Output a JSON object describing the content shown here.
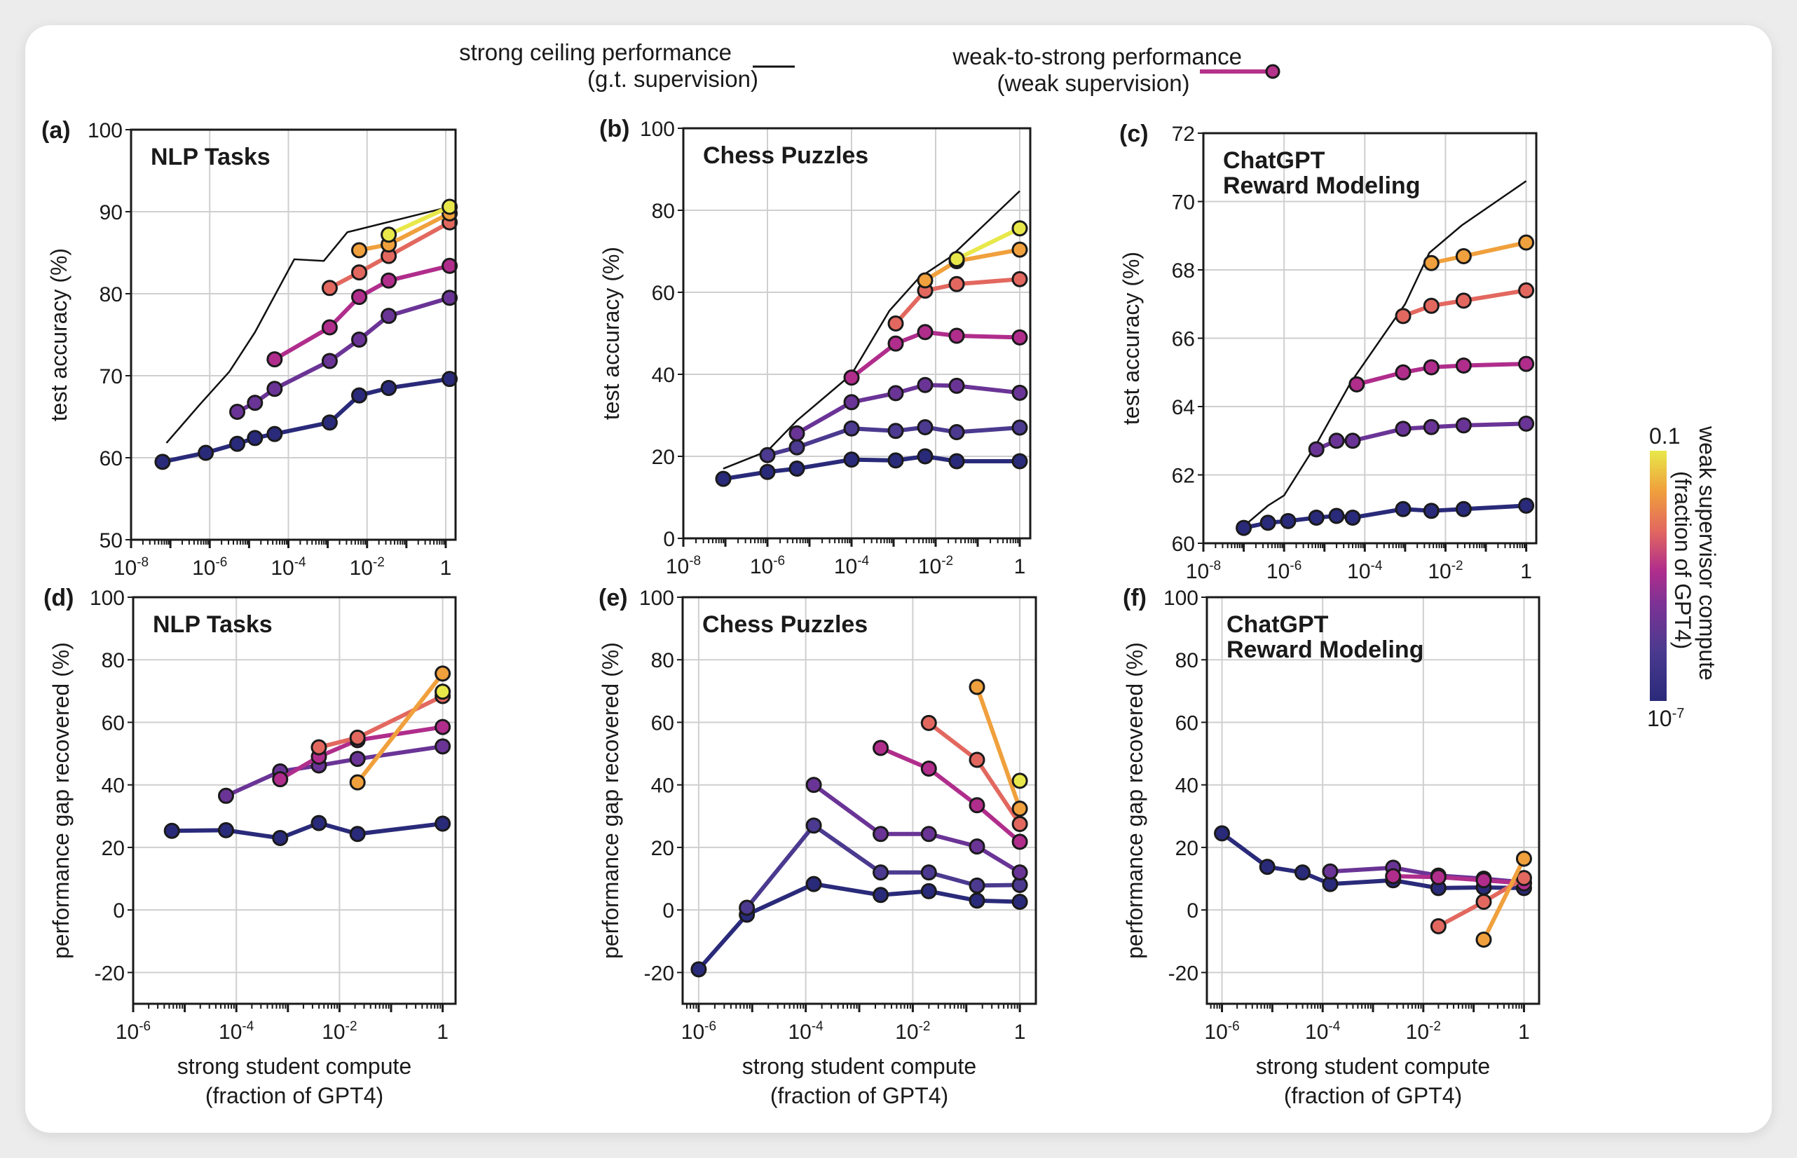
{
  "legend": {
    "ceiling_label_line1": "strong ceiling performance",
    "ceiling_label_line2": "(g.t. supervision)",
    "w2s_label_line1": "weak-to-strong performance",
    "w2s_label_line2": "(weak supervision)",
    "ceiling_color": "#111111",
    "w2s_color": "#b5338a"
  },
  "colorbar": {
    "label_line1": "weak supervisor compute",
    "label_line2": "(fraction of GPT4)",
    "top_label": "0.1",
    "bottom_label_base": "10",
    "bottom_label_exp": "-7",
    "colors": [
      "#2a2a7a",
      "#4b3a8f",
      "#6a3496",
      "#b02d8c",
      "#e2685f",
      "#f0a03c",
      "#e8e84a"
    ]
  },
  "shared": {
    "xlabel_line1": "strong student compute",
    "xlabel_line2": "(fraction of GPT4)",
    "ylabel_top": "test accuracy (%)",
    "ylabel_bottom": "performance gap recovered (%)"
  },
  "chart_data": [
    {
      "id": "a",
      "tag": "(a)",
      "type": "line",
      "title": [
        "NLP Tasks"
      ],
      "xscale": "log",
      "xlim_log10": [
        -8,
        0.25
      ],
      "ylim": [
        50,
        100
      ],
      "yticks": [
        50,
        60,
        70,
        80,
        90,
        100
      ],
      "xticks_log10": [
        -8,
        -6,
        -4,
        -2,
        0
      ],
      "ylabel": "test accuracy (%)",
      "xlabel": "",
      "ceiling": {
        "x_log10": [
          -7.1,
          -6.25,
          -5.5,
          -4.85,
          -3.85,
          -3.1,
          -2.5,
          0.1
        ],
        "y": [
          61.8,
          66.5,
          70.5,
          75.3,
          84.2,
          84.0,
          87.5,
          90.6
        ]
      },
      "series": [
        {
          "supervisor": "1e-7",
          "color": "#2a2a7a",
          "x_log10": [
            -7.2,
            -6.1,
            -5.3,
            -4.85,
            -4.35,
            -2.95,
            -2.2,
            -1.45,
            0.1
          ],
          "y": [
            59.5,
            60.6,
            61.7,
            62.4,
            62.9,
            64.3,
            67.6,
            68.5,
            69.6
          ]
        },
        {
          "supervisor": "~1e-6",
          "color": "#6a3496",
          "x_log10": [
            -5.3,
            -4.85,
            -4.35,
            -2.95,
            -2.2,
            -1.45,
            0.1
          ],
          "y": [
            65.6,
            66.7,
            68.4,
            71.8,
            74.4,
            77.3,
            79.5
          ]
        },
        {
          "supervisor": "~1e-5",
          "color": "#b02d8c",
          "x_log10": [
            -4.35,
            -2.95,
            -2.2,
            -1.45,
            0.1
          ],
          "y": [
            72.0,
            75.9,
            79.6,
            81.6,
            83.4
          ]
        },
        {
          "supervisor": "~1e-4",
          "color": "#e2685f",
          "x_log10": [
            -2.95,
            -2.2,
            -1.45,
            0.1
          ],
          "y": [
            80.7,
            82.6,
            84.6,
            88.7
          ]
        },
        {
          "supervisor": "~1e-3",
          "color": "#f0a03c",
          "x_log10": [
            -2.2,
            -1.45,
            0.1
          ],
          "y": [
            85.3,
            86.0,
            89.8
          ]
        },
        {
          "supervisor": "0.1",
          "color": "#e8e84a",
          "x_log10": [
            -1.45,
            0.1
          ],
          "y": [
            87.2,
            90.6
          ]
        }
      ]
    },
    {
      "id": "b",
      "tag": "(b)",
      "type": "line",
      "title": [
        "Chess Puzzles"
      ],
      "xscale": "log",
      "xlim_log10": [
        -8,
        0.25
      ],
      "ylim": [
        0,
        100
      ],
      "yticks": [
        0,
        20,
        40,
        60,
        80,
        100
      ],
      "xticks_log10": [
        -8,
        -6,
        -4,
        -2,
        0
      ],
      "ylabel": "test accuracy (%)",
      "xlabel": "",
      "ceiling": {
        "x_log10": [
          -7.05,
          -6.0,
          -5.3,
          -4.0,
          -3.1,
          -2.4,
          -1.65,
          0.0
        ],
        "y": [
          17.0,
          21.3,
          28.7,
          40.0,
          55.5,
          63.5,
          68.6,
          84.7
        ]
      },
      "series": [
        {
          "supervisor": "1e-7",
          "color": "#2a2a7a",
          "x_log10": [
            -7.05,
            -6.0,
            -5.3,
            -4.0,
            -2.95,
            -2.25,
            -1.5,
            0.0
          ],
          "y": [
            14.5,
            16.2,
            17.0,
            19.2,
            19.0,
            20.0,
            18.8,
            18.8
          ]
        },
        {
          "supervisor": "~1e-6",
          "color": "#4b3a8f",
          "x_log10": [
            -6.0,
            -5.3,
            -4.0,
            -2.95,
            -2.25,
            -1.5,
            0.0
          ],
          "y": [
            20.3,
            22.2,
            26.8,
            26.2,
            27.1,
            25.9,
            27.0
          ]
        },
        {
          "supervisor": "~1e-5",
          "color": "#6a3496",
          "x_log10": [
            -5.3,
            -4.0,
            -2.95,
            -2.25,
            -1.5,
            0.0
          ],
          "y": [
            25.6,
            33.2,
            35.4,
            37.4,
            37.2,
            35.5
          ]
        },
        {
          "supervisor": "~1e-4",
          "color": "#b02d8c",
          "x_log10": [
            -4.0,
            -2.95,
            -2.25,
            -1.5,
            0.0
          ],
          "y": [
            39.2,
            47.5,
            50.3,
            49.4,
            49.0
          ]
        },
        {
          "supervisor": "~1e-3",
          "color": "#e2685f",
          "x_log10": [
            -2.95,
            -2.25,
            -1.5,
            0.0
          ],
          "y": [
            52.4,
            60.4,
            62.0,
            63.2
          ]
        },
        {
          "supervisor": "~1e-2",
          "color": "#f0a03c",
          "x_log10": [
            -2.25,
            -1.5,
            0.0
          ],
          "y": [
            62.9,
            67.6,
            70.4
          ]
        },
        {
          "supervisor": "0.1",
          "color": "#e8e84a",
          "x_log10": [
            -1.5,
            0.0
          ],
          "y": [
            68.1,
            75.6
          ]
        }
      ]
    },
    {
      "id": "c",
      "tag": "(c)",
      "type": "line",
      "title": [
        "ChatGPT",
        "Reward Modeling"
      ],
      "xscale": "log",
      "xlim_log10": [
        -8,
        0.25
      ],
      "ylim": [
        60,
        72
      ],
      "yticks": [
        60,
        62,
        64,
        66,
        68,
        70,
        72
      ],
      "xticks_log10": [
        -8,
        -6,
        -4,
        -2,
        0
      ],
      "ylabel": "test accuracy (%)",
      "xlabel": "",
      "ceiling": {
        "x_log10": [
          -7.0,
          -6.4,
          -6.0,
          -5.2,
          -4.35,
          -3.0,
          -2.4,
          -1.6,
          0.0
        ],
        "y": [
          60.5,
          61.1,
          61.4,
          62.9,
          64.7,
          67.0,
          68.5,
          69.3,
          70.6
        ]
      },
      "series": [
        {
          "supervisor": "1e-7",
          "color": "#2a2a7a",
          "x_log10": [
            -7.0,
            -6.4,
            -5.9,
            -5.2,
            -4.7,
            -4.3,
            -3.05,
            -2.35,
            -1.55,
            0.0
          ],
          "y": [
            60.45,
            60.6,
            60.65,
            60.75,
            60.8,
            60.75,
            61.0,
            60.95,
            61.0,
            61.1
          ]
        },
        {
          "supervisor": "~1e-5",
          "color": "#6a3496",
          "x_log10": [
            -5.2,
            -4.7,
            -4.3,
            -3.05,
            -2.35,
            -1.55,
            0.0
          ],
          "y": [
            62.75,
            63.0,
            63.0,
            63.35,
            63.4,
            63.45,
            63.5
          ]
        },
        {
          "supervisor": "~1e-4",
          "color": "#b02d8c",
          "x_log10": [
            -4.2,
            -3.05,
            -2.35,
            -1.55,
            0.0
          ],
          "y": [
            64.65,
            65.0,
            65.15,
            65.2,
            65.25
          ]
        },
        {
          "supervisor": "~1e-3",
          "color": "#e2685f",
          "x_log10": [
            -3.05,
            -2.35,
            -1.55,
            0.0
          ],
          "y": [
            66.65,
            66.95,
            67.1,
            67.4
          ]
        },
        {
          "supervisor": "~1e-2",
          "color": "#f0a03c",
          "x_log10": [
            -2.35,
            -1.55,
            0.0
          ],
          "y": [
            68.2,
            68.4,
            68.8
          ]
        }
      ]
    },
    {
      "id": "d",
      "tag": "(d)",
      "type": "line",
      "title": [
        "NLP Tasks"
      ],
      "xscale": "log",
      "xlim_log10": [
        -6,
        0.25
      ],
      "ylim": [
        -30,
        100
      ],
      "yticks": [
        -20,
        0,
        20,
        40,
        60,
        80,
        100
      ],
      "xticks_log10": [
        -6,
        -4,
        -2,
        0
      ],
      "ylabel": "performance gap recovered (%)",
      "xlabel": "strong student compute (fraction of GPT4)",
      "series": [
        {
          "supervisor": "1e-7",
          "color": "#2a2a7a",
          "x_log10": [
            -5.25,
            -4.2,
            -3.15,
            -2.4,
            -1.65,
            0.0
          ],
          "y": [
            25.3,
            25.5,
            23.0,
            27.8,
            24.3,
            27.6
          ]
        },
        {
          "supervisor": "~1e-6",
          "color": "#6a3496",
          "x_log10": [
            -4.2,
            -3.15,
            -2.4,
            -1.65,
            0.0
          ],
          "y": [
            36.5,
            44.3,
            46.2,
            48.3,
            52.3
          ]
        },
        {
          "supervisor": "~1e-5",
          "color": "#b02d8c",
          "x_log10": [
            -3.15,
            -2.4,
            -1.65,
            0.0
          ],
          "y": [
            41.8,
            49.0,
            54.3,
            58.5
          ]
        },
        {
          "supervisor": "~1e-4",
          "color": "#e2685f",
          "x_log10": [
            -2.4,
            -1.65,
            0.0
          ],
          "y": [
            52.0,
            55.1,
            68.4
          ]
        },
        {
          "supervisor": "~1e-3",
          "color": "#f0a03c",
          "x_log10": [
            -1.65,
            0.0
          ],
          "y": [
            40.8,
            75.6
          ]
        },
        {
          "supervisor": "0.1",
          "color": "#e8e84a",
          "x_log10": [
            0.0
          ],
          "y": [
            69.8
          ]
        }
      ]
    },
    {
      "id": "e",
      "tag": "(e)",
      "type": "line",
      "title": [
        "Chess Puzzles"
      ],
      "xscale": "log",
      "xlim_log10": [
        -6.3,
        0.3
      ],
      "ylim": [
        -30,
        100
      ],
      "yticks": [
        -20,
        0,
        20,
        40,
        60,
        80,
        100
      ],
      "xticks_log10": [
        -6,
        -4,
        -2,
        0
      ],
      "ylabel": "performance gap recovered (%)",
      "xlabel": "strong student compute (fraction of GPT4)",
      "series": [
        {
          "supervisor": "1e-7",
          "color": "#2a2a7a",
          "x_log10": [
            -6.0,
            -5.1,
            -3.85,
            -2.6,
            -1.7,
            -0.8,
            1e-09
          ],
          "y": [
            -19.0,
            -1.5,
            8.3,
            4.8,
            6.0,
            3.0,
            2.6
          ]
        },
        {
          "supervisor": "~1e-6",
          "color": "#4b3a8f",
          "x_log10": [
            -5.1,
            -3.85,
            -2.6,
            -1.7,
            -0.8,
            0.0
          ],
          "y": [
            0.7,
            27.0,
            12.0,
            12.0,
            7.8,
            8.0
          ]
        },
        {
          "supervisor": "~1e-5",
          "color": "#6a3496",
          "x_log10": [
            -3.85,
            -2.6,
            -1.7,
            -0.8,
            0.0
          ],
          "y": [
            40.0,
            24.3,
            24.3,
            20.3,
            12.0
          ]
        },
        {
          "supervisor": "~1e-4",
          "color": "#b02d8c",
          "x_log10": [
            -2.6,
            -1.7,
            -0.8,
            0.0
          ],
          "y": [
            51.8,
            45.2,
            33.5,
            21.8
          ]
        },
        {
          "supervisor": "~1e-3",
          "color": "#e2685f",
          "x_log10": [
            -1.7,
            -0.8,
            0.0
          ],
          "y": [
            59.8,
            48.0,
            27.5
          ]
        },
        {
          "supervisor": "~1e-2",
          "color": "#f0a03c",
          "x_log10": [
            -0.8,
            0.0
          ],
          "y": [
            71.3,
            32.4
          ]
        },
        {
          "supervisor": "0.1",
          "color": "#e8e84a",
          "x_log10": [
            0.0
          ],
          "y": [
            41.3
          ]
        }
      ]
    },
    {
      "id": "f",
      "tag": "(f)",
      "type": "line",
      "title": [
        "ChatGPT",
        "Reward Modeling"
      ],
      "xscale": "log",
      "xlim_log10": [
        -6.3,
        0.3
      ],
      "ylim": [
        -30,
        100
      ],
      "yticks": [
        -20,
        0,
        20,
        40,
        60,
        80,
        100
      ],
      "xticks_log10": [
        -6,
        -4,
        -2,
        0
      ],
      "ylabel": "performance gap recovered (%)",
      "xlabel": "strong student compute (fraction of GPT4)",
      "series": [
        {
          "supervisor": "1e-7",
          "color": "#2a2a7a",
          "x_log10": [
            -6.0,
            -5.1,
            -4.4,
            -3.85,
            -2.6,
            -1.7,
            -0.8,
            0.0
          ],
          "y": [
            24.5,
            13.8,
            12.0,
            8.3,
            9.5,
            7.0,
            7.2,
            7.0
          ]
        },
        {
          "supervisor": "~1e-5",
          "color": "#6a3496",
          "x_log10": [
            -3.85,
            -2.6,
            -1.7,
            -0.8,
            0.0
          ],
          "y": [
            12.3,
            13.5,
            11.0,
            10.0,
            8.8
          ]
        },
        {
          "supervisor": "~1e-4",
          "color": "#b02d8c",
          "x_log10": [
            -2.6,
            -1.7,
            -0.8,
            0.0
          ],
          "y": [
            10.8,
            10.5,
            9.5,
            8.5
          ]
        },
        {
          "supervisor": "~1e-3",
          "color": "#e2685f",
          "x_log10": [
            -1.7,
            -0.8,
            0.0
          ],
          "y": [
            -5.2,
            2.6,
            10.2
          ]
        },
        {
          "supervisor": "~1e-2",
          "color": "#f0a03c",
          "x_log10": [
            -0.8,
            0.0
          ],
          "y": [
            -9.5,
            16.4
          ]
        }
      ]
    }
  ]
}
